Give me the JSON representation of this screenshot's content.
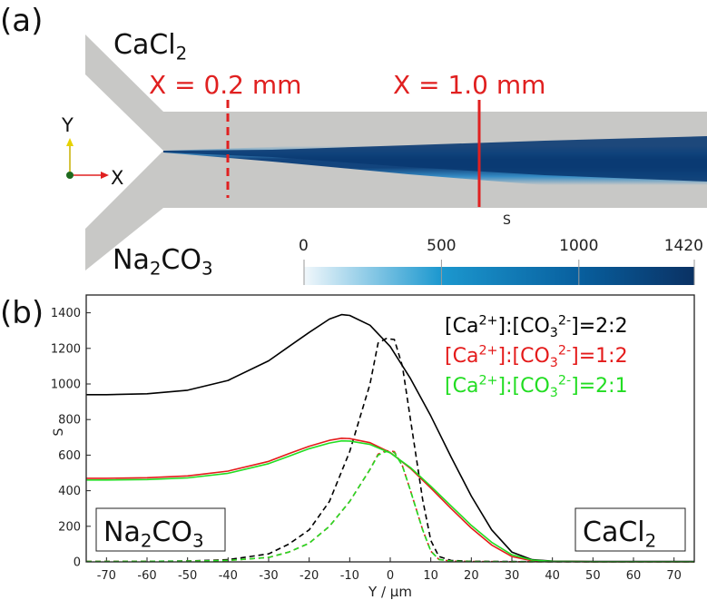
{
  "chart_data": [
    {
      "type": "heatmap",
      "panel_label": "(a)",
      "inlet_top_label": {
        "base": "CaCl",
        "sub": "2"
      },
      "inlet_bottom_label": {
        "parts": [
          {
            "t": "Na",
            "sub": false
          },
          {
            "t": "2",
            "sub": true
          },
          {
            "t": "CO",
            "sub": false
          },
          {
            "t": "3",
            "sub": true
          }
        ]
      },
      "cut_lines": [
        {
          "label": "X = 0.2 mm",
          "x_mm": 0.2,
          "style": "dashed"
        },
        {
          "label": "X = 1.0 mm",
          "x_mm": 1.0,
          "style": "solid"
        }
      ],
      "axes_triad": {
        "y_label": "Y",
        "x_label": "X"
      },
      "colorbar": {
        "title": "S",
        "min": 0,
        "max": 1420,
        "ticks": [
          0,
          500,
          1000,
          1420
        ],
        "tick_labels": [
          "0",
          "500",
          "1000",
          "1420"
        ],
        "colors": {
          "low": "#f1f7fb",
          "mid": "#1c98cf",
          "high": "#0a3163"
        }
      },
      "colors": {
        "channel": "#c8c8c6",
        "cut_line": "#e02020"
      }
    },
    {
      "type": "line",
      "panel_label": "(b)",
      "xlabel": "Y / µm",
      "ylabel": "S",
      "xlim": [
        -75,
        75
      ],
      "ylim": [
        0,
        1500
      ],
      "xticks": [
        -70,
        -60,
        -50,
        -40,
        -30,
        -20,
        -10,
        0,
        10,
        20,
        30,
        40,
        50,
        60,
        70
      ],
      "yticks": [
        0,
        200,
        400,
        600,
        800,
        1000,
        1200,
        1400
      ],
      "legend_position": "top-right",
      "legend": [
        {
          "color": "#000000",
          "parts": [
            {
              "t": "[Ca",
              "s": null
            },
            {
              "t": "2+",
              "s": "sup"
            },
            {
              "t": "]:[CO",
              "s": null
            },
            {
              "t": "3",
              "s": "sub"
            },
            {
              "t": "2-",
              "s": "sup"
            },
            {
              "t": "]=2:2",
              "s": null
            }
          ]
        },
        {
          "color": "#e41a1a",
          "parts": [
            {
              "t": "[Ca",
              "s": null
            },
            {
              "t": "2+",
              "s": "sup"
            },
            {
              "t": "]:[CO",
              "s": null
            },
            {
              "t": "3",
              "s": "sub"
            },
            {
              "t": "2-",
              "s": "sup"
            },
            {
              "t": "]=1:2",
              "s": null
            }
          ]
        },
        {
          "color": "#22dd22",
          "parts": [
            {
              "t": "[Ca",
              "s": null
            },
            {
              "t": "2+",
              "s": "sup"
            },
            {
              "t": "]:[CO",
              "s": null
            },
            {
              "t": "3",
              "s": "sub"
            },
            {
              "t": "2-",
              "s": "sup"
            },
            {
              "t": "]=2:1",
              "s": null
            }
          ]
        }
      ],
      "left_box_label": {
        "parts": [
          {
            "t": "Na",
            "sub": false
          },
          {
            "t": "2",
            "sub": true
          },
          {
            "t": "CO",
            "sub": false
          },
          {
            "t": "3",
            "sub": true
          }
        ]
      },
      "right_box_label": {
        "parts": [
          {
            "t": "CaCl",
            "sub": false
          },
          {
            "t": "2",
            "sub": true
          }
        ]
      },
      "series": [
        {
          "color": "#000000",
          "dash": false,
          "x": [
            -75,
            -70,
            -60,
            -50,
            -40,
            -30,
            -25,
            -20,
            -15,
            -12,
            -10,
            -5,
            0,
            5,
            10,
            15,
            20,
            25,
            30,
            35,
            40,
            50,
            60,
            75
          ],
          "y": [
            940,
            940,
            945,
            965,
            1020,
            1130,
            1210,
            1290,
            1365,
            1390,
            1385,
            1330,
            1210,
            1030,
            820,
            590,
            370,
            180,
            55,
            12,
            4,
            2,
            2,
            2
          ]
        },
        {
          "color": "#000000",
          "dash": true,
          "x": [
            -75,
            -60,
            -50,
            -40,
            -30,
            -25,
            -20,
            -15,
            -10,
            -5,
            -3,
            -1,
            1,
            3,
            5,
            8,
            10,
            12,
            15,
            20,
            30,
            40,
            50,
            75
          ],
          "y": [
            2,
            3,
            5,
            12,
            45,
            100,
            180,
            340,
            620,
            1000,
            1230,
            1255,
            1250,
            1100,
            800,
            350,
            120,
            30,
            8,
            3,
            2,
            1,
            1,
            1
          ]
        },
        {
          "color": "#e41a1a",
          "dash": false,
          "x": [
            -75,
            -70,
            -60,
            -50,
            -40,
            -30,
            -25,
            -20,
            -15,
            -12,
            -10,
            -5,
            0,
            5,
            10,
            15,
            20,
            25,
            30,
            35,
            40,
            50,
            60,
            75
          ],
          "y": [
            470,
            470,
            473,
            483,
            510,
            565,
            608,
            650,
            683,
            695,
            693,
            670,
            615,
            525,
            415,
            300,
            190,
            95,
            30,
            6,
            2,
            1,
            1,
            1
          ]
        },
        {
          "color": "#e41a1a",
          "dash": true,
          "x": [
            -75,
            -60,
            -50,
            -40,
            -30,
            -25,
            -20,
            -15,
            -10,
            -5,
            -3,
            -1,
            1,
            3,
            5,
            8,
            10,
            12,
            15,
            20,
            30,
            40,
            50,
            75
          ],
          "y": [
            2,
            3,
            4,
            8,
            25,
            55,
            105,
            200,
            340,
            520,
            605,
            625,
            620,
            540,
            400,
            180,
            60,
            14,
            4,
            2,
            1,
            1,
            1,
            1
          ]
        },
        {
          "color": "#22dd22",
          "dash": false,
          "x": [
            -75,
            -70,
            -60,
            -50,
            -40,
            -30,
            -25,
            -20,
            -15,
            -12,
            -10,
            -5,
            0,
            5,
            10,
            15,
            20,
            25,
            30,
            35,
            40,
            50,
            60,
            75
          ],
          "y": [
            460,
            460,
            463,
            472,
            498,
            552,
            594,
            636,
            668,
            680,
            679,
            660,
            612,
            530,
            425,
            315,
            205,
            110,
            40,
            10,
            3,
            1,
            1,
            1
          ]
        },
        {
          "color": "#22dd22",
          "dash": true,
          "x": [
            -75,
            -60,
            -50,
            -40,
            -30,
            -25,
            -20,
            -15,
            -10,
            -5,
            -3,
            -1,
            1,
            3,
            5,
            8,
            10,
            12,
            15,
            20,
            30,
            40,
            50,
            75
          ],
          "y": [
            2,
            3,
            4,
            8,
            25,
            55,
            105,
            200,
            340,
            520,
            600,
            620,
            615,
            540,
            400,
            180,
            60,
            14,
            4,
            2,
            1,
            1,
            1,
            1
          ]
        }
      ]
    }
  ]
}
